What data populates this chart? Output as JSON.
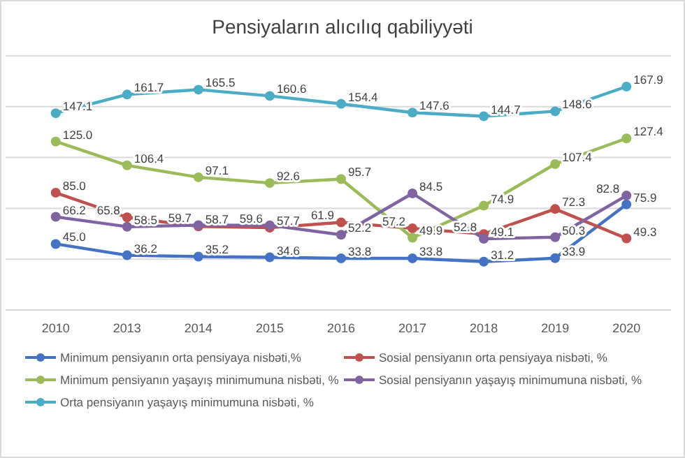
{
  "chart_data": {
    "type": "line",
    "title": "Pensiyaların alıcılıq qabiliyyəti",
    "categories": [
      "2010",
      "2013",
      "2014",
      "2015",
      "2016",
      "2017",
      "2018",
      "2019",
      "2020"
    ],
    "grid": "y",
    "tick_labels": "x",
    "legend": "bottom",
    "marker": "circle",
    "line_style": "solid",
    "series": [
      {
        "name": "Minimum pensiyanın orta pensiyaya nisbəti,%",
        "color": "#4472c4",
        "values": [
          45.0,
          36.2,
          35.2,
          34.6,
          33.8,
          33.8,
          31.2,
          33.9,
          75.9
        ],
        "value_labels": [
          "45.0",
          "36.2",
          "35.2",
          "34.6",
          "33.8",
          "33.8",
          "31.2",
          "33.9",
          "75.9"
        ]
      },
      {
        "name": "Sosial pensiyanın orta pensiyaya nisbəti, %",
        "color": "#c0504d",
        "values": [
          85.0,
          65.8,
          58.7,
          57.7,
          61.9,
          57.2,
          52.8,
          72.3,
          49.3
        ],
        "value_labels": [
          "85.0",
          "65.8",
          "58.7",
          "57.7",
          "61.9",
          "57.2",
          "52.8",
          "72.3",
          "49.3"
        ]
      },
      {
        "name": "Minimum pensiyanın yaşayış minimumuna nisbəti, %",
        "color": "#9bbb59",
        "values": [
          125.0,
          106.4,
          97.1,
          92.6,
          95.7,
          49.9,
          74.9,
          107.4,
          127.4
        ],
        "value_labels": [
          "125.0",
          "106.4",
          "97.1",
          "92.6",
          "95.7",
          "49.9",
          "74.9",
          "107.4",
          "127.4"
        ]
      },
      {
        "name": "Sosial pensiyanın yaşayış minimumuna nisbəti, %",
        "color": "#8064a2",
        "values": [
          66.2,
          58.5,
          59.7,
          59.6,
          52.2,
          84.5,
          49.1,
          50.3,
          82.8
        ],
        "value_labels": [
          "66.2",
          "58.5",
          "59.7",
          "59.6",
          "52.2",
          "84.5",
          "49.1",
          "50.3",
          "82.8"
        ]
      },
      {
        "name": "Orta pensiyanın yaşayış minimumuna nisbəti, %",
        "color": "#4bacc6",
        "values": [
          147.1,
          161.7,
          165.5,
          160.6,
          154.4,
          147.6,
          144.7,
          148.6,
          167.9
        ],
        "value_labels": [
          "147.1",
          "161.7",
          "165.5",
          "160.6",
          "154.4",
          "147.6",
          "144.7",
          "148.6",
          "167.9"
        ]
      }
    ]
  }
}
